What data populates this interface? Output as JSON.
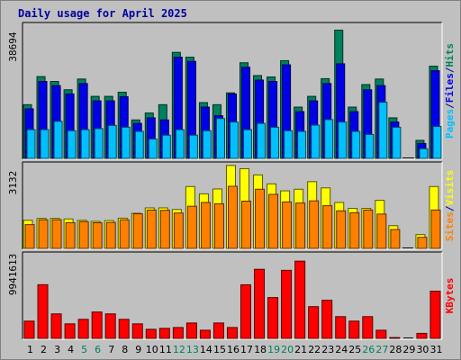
{
  "title": "Daily usage for April 2025",
  "colors": {
    "hits": "#00805c",
    "files": "#0000e8",
    "pages": "#00c0ff",
    "visits": "#ffff00",
    "sites": "#ff8000",
    "kbytes": "#ff0000",
    "weekend_label": "#00805c",
    "weekday_label": "#000000",
    "panel_bg": "#c0c0c0"
  },
  "chart_data": [
    {
      "type": "bar",
      "panel": "hits-files-pages",
      "ylabel": "Pages / Files / Hits",
      "ylabel_parts": [
        "Pages",
        "/",
        "Files",
        "/",
        "Hits"
      ],
      "ymax_label": "38694",
      "ylim": [
        0,
        38694
      ],
      "categories": [
        "1",
        "2",
        "3",
        "4",
        "5",
        "6",
        "7",
        "8",
        "9",
        "10",
        "11",
        "12",
        "13",
        "14",
        "15",
        "16",
        "17",
        "18",
        "19",
        "20",
        "21",
        "22",
        "23",
        "24",
        "25",
        "26",
        "27",
        "28",
        "29",
        "30",
        "31"
      ],
      "series": [
        {
          "name": "Hits",
          "values": [
            15500,
            23600,
            22200,
            19800,
            22900,
            17900,
            17900,
            19100,
            11100,
            13100,
            15500,
            30600,
            29200,
            16100,
            15500,
            18900,
            27600,
            23900,
            23500,
            28200,
            14800,
            17900,
            23000,
            37000,
            14800,
            21300,
            22900,
            11700,
            0,
            5200,
            26600
          ]
        },
        {
          "name": "Files",
          "values": [
            14300,
            22200,
            21000,
            18600,
            21600,
            16600,
            16600,
            17800,
            10100,
            11700,
            11100,
            29200,
            28000,
            14800,
            12300,
            18600,
            26300,
            22600,
            22200,
            27000,
            13500,
            16600,
            21600,
            27300,
            13500,
            19800,
            21000,
            10500,
            0,
            4300,
            25300
          ]
        },
        {
          "name": "Pages",
          "values": [
            8300,
            8300,
            10700,
            8000,
            8300,
            8600,
            9500,
            9000,
            7800,
            5600,
            6700,
            8300,
            6700,
            8000,
            11500,
            10500,
            8300,
            10100,
            9000,
            8000,
            7800,
            9600,
            11200,
            10500,
            7800,
            6900,
            16200,
            9000,
            0,
            2800,
            9200
          ]
        }
      ]
    },
    {
      "type": "bar",
      "panel": "sites-visits",
      "ylabel": "Sites / Visits",
      "ylabel_parts": [
        "Sites",
        "/",
        "Visits"
      ],
      "ymax_label": "3132",
      "ylim": [
        0,
        3132
      ],
      "categories": [
        "1",
        "2",
        "3",
        "4",
        "5",
        "6",
        "7",
        "8",
        "9",
        "10",
        "11",
        "12",
        "13",
        "14",
        "15",
        "16",
        "17",
        "18",
        "19",
        "20",
        "21",
        "22",
        "23",
        "24",
        "25",
        "26",
        "27",
        "28",
        "29",
        "30",
        "31"
      ],
      "series": [
        {
          "name": "Visits",
          "values": [
            1040,
            1110,
            1110,
            1090,
            1040,
            1000,
            1030,
            1120,
            1300,
            1500,
            1500,
            1440,
            2290,
            2020,
            2200,
            3070,
            2950,
            2720,
            2390,
            2130,
            2190,
            2470,
            2240,
            1700,
            1480,
            1480,
            1780,
            840,
            0,
            510,
            2290
          ]
        },
        {
          "name": "Sites",
          "values": [
            880,
            1060,
            1060,
            950,
            990,
            950,
            960,
            1060,
            1280,
            1420,
            1410,
            1310,
            1560,
            1700,
            1650,
            2300,
            1750,
            2190,
            2000,
            1720,
            1680,
            1760,
            1580,
            1390,
            1320,
            1420,
            1270,
            700,
            0,
            410,
            1420
          ]
        }
      ]
    },
    {
      "type": "bar",
      "panel": "kbytes",
      "ylabel": "KBytes",
      "ymax_label": "9941613",
      "ylim": [
        0,
        9941613
      ],
      "categories": [
        "1",
        "2",
        "3",
        "4",
        "5",
        "6",
        "7",
        "8",
        "9",
        "10",
        "11",
        "12",
        "13",
        "14",
        "15",
        "16",
        "17",
        "18",
        "19",
        "20",
        "21",
        "22",
        "23",
        "24",
        "25",
        "26",
        "27",
        "28",
        "29",
        "30",
        "31"
      ],
      "series": [
        {
          "name": "KBytes",
          "values": [
            2030000,
            6310000,
            2880000,
            1710000,
            2240000,
            3100000,
            2880000,
            2240000,
            1710000,
            1070000,
            1180000,
            1280000,
            1810000,
            960000,
            1810000,
            1280000,
            6300000,
            8120000,
            4800000,
            8000000,
            9080000,
            3730000,
            4480000,
            2560000,
            2030000,
            2560000,
            960000,
            100000,
            0,
            590000,
            5550000
          ]
        }
      ]
    }
  ],
  "weekend_days": [
    "5",
    "6",
    "12",
    "13",
    "19",
    "20",
    "26",
    "27"
  ]
}
